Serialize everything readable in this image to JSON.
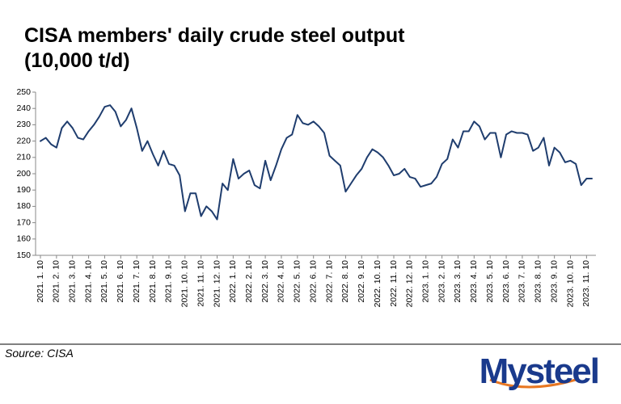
{
  "chart_data": {
    "type": "line",
    "title": "CISA members' daily crude steel output",
    "subtitle": "(10,000 t/d)",
    "source": "Source: CISA",
    "logo": "Mysteel",
    "color": "#1f3d6e",
    "categories": [
      "2021. 1. 10",
      null,
      null,
      "2021. 2. 10",
      null,
      null,
      "2021. 3. 10",
      null,
      null,
      "2021. 4. 10",
      null,
      null,
      "2021. 5. 10",
      null,
      null,
      "2021. 6. 10",
      null,
      null,
      "2021. 7. 10",
      null,
      null,
      "2021. 8. 10",
      null,
      null,
      "2021. 9. 10",
      null,
      null,
      "2021. 10. 10",
      null,
      null,
      "2021. 11. 10",
      null,
      null,
      "2021. 12. 10",
      null,
      null,
      "2022. 1. 10",
      null,
      null,
      "2022. 2. 10",
      null,
      null,
      "2022. 3. 10",
      null,
      null,
      "2022. 4. 10",
      null,
      null,
      "2022. 5. 10",
      null,
      null,
      "2022. 6. 10",
      null,
      null,
      "2022. 7. 10",
      null,
      null,
      "2022. 8. 10",
      null,
      null,
      "2022. 9. 10",
      null,
      null,
      "2022. 10. 10",
      null,
      null,
      "2022. 11. 10",
      null,
      null,
      "2022. 12. 10",
      null,
      null,
      "2023. 1. 10",
      null,
      null,
      "2023. 2. 10",
      null,
      null,
      "2023. 3. 10",
      null,
      null,
      "2023. 4. 10",
      null,
      null,
      "2023. 5. 10",
      null,
      null,
      "2023. 6. 10",
      null,
      null,
      "2023. 7. 10",
      null,
      null,
      "2023. 8. 10",
      null,
      null,
      "2023. 9. 10",
      null,
      null,
      "2023. 10. 10",
      null,
      null,
      "2023. 11. 10",
      null
    ],
    "values": [
      220,
      222,
      218,
      216,
      228,
      232,
      228,
      222,
      221,
      226,
      230,
      235,
      241,
      242,
      238,
      229,
      233,
      240,
      228,
      214,
      220,
      212,
      205,
      214,
      206,
      205,
      199,
      177,
      188,
      188,
      174,
      180,
      177,
      172,
      194,
      190,
      209,
      197,
      200,
      202,
      193,
      191,
      208,
      196,
      205,
      215,
      222,
      224,
      236,
      231,
      230,
      232,
      229,
      225,
      211,
      208,
      205,
      189,
      194,
      199,
      203,
      210,
      215,
      213,
      210,
      205,
      199,
      200,
      203,
      198,
      197,
      192,
      193,
      194,
      198,
      206,
      209,
      221,
      216,
      226,
      226,
      232,
      229,
      221,
      225,
      225,
      210,
      224,
      226,
      225,
      225,
      224,
      214,
      216,
      222,
      205,
      216,
      213,
      207,
      208,
      206,
      193,
      197,
      197
    ],
    "ylim": [
      150,
      250
    ],
    "yticks": [
      150,
      160,
      170,
      180,
      190,
      200,
      210,
      220,
      230,
      240,
      250
    ]
  }
}
